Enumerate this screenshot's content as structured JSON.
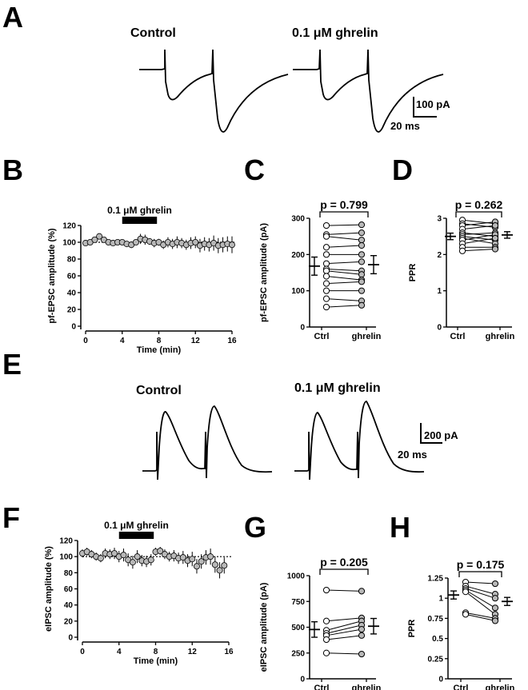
{
  "panels": {
    "A": {
      "letter": "A",
      "labels": [
        "Control",
        "0.1 μM ghrelin"
      ],
      "scale": {
        "y_value": "100 pA",
        "x_value": "20 ms"
      }
    },
    "B": {
      "letter": "B",
      "bar_label": "0.1 μM ghrelin",
      "bar_start": 4,
      "bar_end": 7.8
    },
    "C": {
      "letter": "C",
      "p_label": "p = 0.799"
    },
    "D": {
      "letter": "D",
      "p_label": "p = 0.262"
    },
    "E": {
      "letter": "E",
      "labels": [
        "Control",
        "0.1 μM ghrelin"
      ],
      "scale": {
        "y_value": "200 pA",
        "x_value": "20 ms"
      }
    },
    "F": {
      "letter": "F",
      "bar_label": "0.1 μM ghrelin",
      "bar_start": 4,
      "bar_end": 7.8
    },
    "G": {
      "letter": "G",
      "p_label": "p = 0.205"
    },
    "H": {
      "letter": "H",
      "p_label": "p = 0.175"
    }
  },
  "colors": {
    "ghrelin_marker": "#b8b8b8",
    "ctrl_marker": "#ffffff",
    "ink": "#000000"
  },
  "chart_data": [
    {
      "id": "B",
      "type": "scatter",
      "xlabel": "Time (min)",
      "ylabel": "pf-EPSC amplitude (%)",
      "xlim": [
        0,
        16
      ],
      "ylim": [
        0,
        120
      ],
      "xticks": [
        0,
        4,
        8,
        12,
        16
      ],
      "yticks": [
        0,
        20,
        40,
        60,
        80,
        100,
        120
      ],
      "reference_line": 100,
      "x": [
        0,
        0.5,
        1,
        1.5,
        2,
        2.5,
        3,
        3.5,
        4,
        4.5,
        5,
        5.5,
        6,
        6.5,
        7,
        7.5,
        8,
        8.5,
        9,
        9.5,
        10,
        10.5,
        11,
        11.5,
        12,
        12.5,
        13,
        13.5,
        14,
        14.5,
        15,
        15.5,
        16
      ],
      "y": [
        99,
        100,
        103,
        107,
        103,
        100,
        99,
        100,
        100,
        98,
        97,
        100,
        104,
        103,
        101,
        99,
        100,
        97,
        100,
        98,
        100,
        99,
        97,
        99,
        100,
        96,
        98,
        97,
        99,
        96,
        97,
        98,
        97
      ],
      "err": [
        2,
        2,
        3,
        3,
        2,
        2,
        2,
        3,
        3,
        3,
        4,
        3,
        6,
        6,
        4,
        5,
        4,
        5,
        6,
        6,
        7,
        6,
        6,
        7,
        7,
        8,
        8,
        8,
        9,
        9,
        9,
        9,
        10
      ]
    },
    {
      "id": "C",
      "type": "scatter",
      "categories": [
        "Ctrl",
        "ghrelin"
      ],
      "ylabel": "pf-EPSC amplitude (pA)",
      "ylim": [
        0,
        300
      ],
      "yticks": [
        0,
        100,
        200,
        300
      ],
      "pairs": [
        [
          280,
          282
        ],
        [
          255,
          260
        ],
        [
          250,
          240
        ],
        [
          220,
          225
        ],
        [
          200,
          200
        ],
        [
          175,
          180
        ],
        [
          160,
          155
        ],
        [
          155,
          145
        ],
        [
          140,
          130
        ],
        [
          120,
          125
        ],
        [
          100,
          100
        ],
        [
          78,
          72
        ],
        [
          55,
          60
        ]
      ],
      "mean": [
        168,
        172
      ],
      "sem": [
        25,
        25
      ]
    },
    {
      "id": "D",
      "type": "scatter",
      "categories": [
        "Ctrl",
        "ghrelin"
      ],
      "ylabel": "PPR",
      "ylim": [
        0,
        3
      ],
      "yticks": [
        0,
        1,
        2,
        3
      ],
      "pairs": [
        [
          2.95,
          2.85
        ],
        [
          2.85,
          2.75
        ],
        [
          2.8,
          2.9
        ],
        [
          2.7,
          2.8
        ],
        [
          2.6,
          2.5
        ],
        [
          2.55,
          2.6
        ],
        [
          2.5,
          2.4
        ],
        [
          2.45,
          2.3
        ],
        [
          2.4,
          2.55
        ],
        [
          2.3,
          2.45
        ],
        [
          2.2,
          2.2
        ],
        [
          2.1,
          2.15
        ]
      ],
      "mean": [
        2.5,
        2.54
      ],
      "sem": [
        0.09,
        0.09
      ]
    },
    {
      "id": "F",
      "type": "scatter",
      "xlabel": "Time (min)",
      "ylabel": "eIPSC amplitude (%)",
      "xlim": [
        0,
        16
      ],
      "ylim": [
        0,
        120
      ],
      "xticks": [
        0,
        4,
        8,
        12,
        16
      ],
      "yticks": [
        0,
        20,
        40,
        60,
        80,
        100,
        120
      ],
      "reference_line": 100,
      "x": [
        0,
        0.5,
        1,
        1.5,
        2,
        2.5,
        3,
        3.5,
        4,
        4.5,
        5,
        5.5,
        6,
        6.5,
        7,
        7.5,
        8,
        8.5,
        9,
        9.5,
        10,
        10.5,
        11,
        11.5,
        12,
        12.5,
        13,
        13.5,
        14,
        14.5,
        15,
        15.5
      ],
      "y": [
        104,
        106,
        103,
        100,
        98,
        104,
        103,
        104,
        100,
        102,
        96,
        93,
        100,
        95,
        94,
        96,
        106,
        107,
        103,
        100,
        101,
        98,
        99,
        95,
        97,
        88,
        94,
        99,
        100,
        90,
        83,
        89
      ],
      "err": [
        5,
        5,
        5,
        5,
        5,
        6,
        6,
        7,
        7,
        8,
        8,
        8,
        8,
        7,
        7,
        7,
        5,
        5,
        6,
        6,
        7,
        7,
        8,
        8,
        9,
        9,
        9,
        9,
        10,
        10,
        10,
        10
      ]
    },
    {
      "id": "G",
      "type": "scatter",
      "categories": [
        "Ctrl",
        "ghrelin"
      ],
      "ylabel": "eIPSC amplitude (pA)",
      "ylim": [
        0,
        1000
      ],
      "yticks": [
        0,
        250,
        500,
        750,
        1000
      ],
      "pairs": [
        [
          860,
          850
        ],
        [
          560,
          590
        ],
        [
          470,
          560
        ],
        [
          440,
          520
        ],
        [
          420,
          480
        ],
        [
          380,
          420
        ],
        [
          250,
          240
        ]
      ],
      "mean": [
        478,
        510
      ],
      "sem": [
        75,
        75
      ]
    },
    {
      "id": "H",
      "type": "scatter",
      "categories": [
        "Ctrl",
        "ghrelin"
      ],
      "ylabel": "PPR",
      "ylim": [
        0,
        1.25
      ],
      "yticks": [
        0,
        0.25,
        0.5,
        0.75,
        1,
        1.25
      ],
      "ytick_labels": [
        "0",
        "0.25",
        "0.5",
        "0.75",
        "1",
        "1.25"
      ],
      "pairs": [
        [
          1.2,
          1.18
        ],
        [
          1.15,
          1.05
        ],
        [
          1.12,
          1.0
        ],
        [
          1.1,
          0.88
        ],
        [
          1.08,
          0.8
        ],
        [
          0.82,
          0.75
        ],
        [
          0.8,
          0.72
        ]
      ],
      "mean": [
        1.04,
        0.96
      ],
      "sem": [
        0.05,
        0.05
      ]
    }
  ]
}
